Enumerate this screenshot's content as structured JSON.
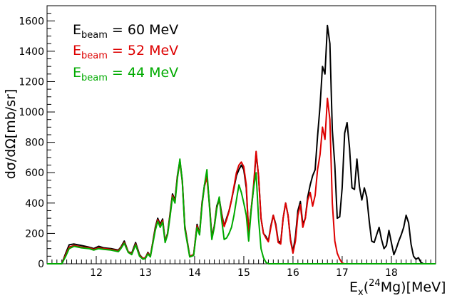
{
  "chart_data": {
    "type": "line",
    "title": "",
    "ylabel": "dσ/dΩ[mb/sr]",
    "xlabel": {
      "main": "E",
      "sub": "x",
      "open": "(",
      "sup": "24",
      "element": "Mg",
      "tail": ")[MeV]"
    },
    "xlim": [
      11.0,
      18.9
    ],
    "ylim": [
      0,
      1700
    ],
    "xticks": [
      "12",
      "13",
      "14",
      "15",
      "16",
      "17",
      "18"
    ],
    "yticks": [
      "0",
      "200",
      "400",
      "600",
      "800",
      "1000",
      "1200",
      "1400",
      "1600"
    ],
    "grid": false,
    "legend": {
      "placement": "top-left",
      "entries": [
        {
          "label_main": "E",
          "label_sub": "beam",
          "label_value": "= 60 MeV",
          "color": "#000000"
        },
        {
          "label_main": "E",
          "label_sub": "beam",
          "label_value": "= 52 MeV",
          "color": "#dd0000"
        },
        {
          "label_main": "E",
          "label_sub": "beam",
          "label_value": "= 44 MeV",
          "color": "#00aa00"
        }
      ]
    },
    "series": [
      {
        "name": "E beam = 60 MeV",
        "color": "#000000",
        "points": [
          [
            11.3,
            0
          ],
          [
            11.38,
            70
          ],
          [
            11.45,
            125
          ],
          [
            11.55,
            130
          ],
          [
            11.7,
            120
          ],
          [
            11.85,
            110
          ],
          [
            11.95,
            100
          ],
          [
            12.05,
            115
          ],
          [
            12.15,
            105
          ],
          [
            12.3,
            100
          ],
          [
            12.45,
            90
          ],
          [
            12.5,
            110
          ],
          [
            12.57,
            150
          ],
          [
            12.65,
            80
          ],
          [
            12.72,
            70
          ],
          [
            12.8,
            140
          ],
          [
            12.88,
            60
          ],
          [
            12.95,
            35
          ],
          [
            13.0,
            40
          ],
          [
            13.05,
            75
          ],
          [
            13.1,
            50
          ],
          [
            13.2,
            240
          ],
          [
            13.25,
            300
          ],
          [
            13.3,
            260
          ],
          [
            13.35,
            295
          ],
          [
            13.4,
            150
          ],
          [
            13.45,
            200
          ],
          [
            13.5,
            330
          ],
          [
            13.55,
            460
          ],
          [
            13.6,
            420
          ],
          [
            13.65,
            580
          ],
          [
            13.7,
            680
          ],
          [
            13.75,
            550
          ],
          [
            13.8,
            250
          ],
          [
            13.9,
            50
          ],
          [
            13.98,
            60
          ],
          [
            14.05,
            260
          ],
          [
            14.1,
            200
          ],
          [
            14.15,
            400
          ],
          [
            14.2,
            520
          ],
          [
            14.25,
            580
          ],
          [
            14.3,
            400
          ],
          [
            14.35,
            180
          ],
          [
            14.4,
            250
          ],
          [
            14.45,
            380
          ],
          [
            14.5,
            430
          ],
          [
            14.55,
            330
          ],
          [
            14.6,
            250
          ],
          [
            14.65,
            300
          ],
          [
            14.7,
            350
          ],
          [
            14.75,
            420
          ],
          [
            14.8,
            500
          ],
          [
            14.85,
            580
          ],
          [
            14.9,
            620
          ],
          [
            14.95,
            650
          ],
          [
            15.0,
            620
          ],
          [
            15.05,
            500
          ],
          [
            15.1,
            200
          ],
          [
            15.15,
            360
          ],
          [
            15.2,
            500
          ],
          [
            15.25,
            730
          ],
          [
            15.3,
            580
          ],
          [
            15.35,
            300
          ],
          [
            15.4,
            200
          ],
          [
            15.45,
            180
          ],
          [
            15.5,
            150
          ],
          [
            15.55,
            250
          ],
          [
            15.6,
            320
          ],
          [
            15.65,
            260
          ],
          [
            15.7,
            150
          ],
          [
            15.75,
            140
          ],
          [
            15.8,
            300
          ],
          [
            15.85,
            400
          ],
          [
            15.9,
            320
          ],
          [
            15.95,
            160
          ],
          [
            16.0,
            80
          ],
          [
            16.05,
            180
          ],
          [
            16.1,
            350
          ],
          [
            16.15,
            410
          ],
          [
            16.2,
            260
          ],
          [
            16.25,
            300
          ],
          [
            16.3,
            440
          ],
          [
            16.35,
            520
          ],
          [
            16.4,
            580
          ],
          [
            16.45,
            620
          ],
          [
            16.5,
            840
          ],
          [
            16.55,
            1040
          ],
          [
            16.6,
            1300
          ],
          [
            16.65,
            1250
          ],
          [
            16.7,
            1570
          ],
          [
            16.75,
            1450
          ],
          [
            16.8,
            880
          ],
          [
            16.85,
            650
          ],
          [
            16.9,
            300
          ],
          [
            16.95,
            310
          ],
          [
            17.0,
            500
          ],
          [
            17.05,
            860
          ],
          [
            17.1,
            930
          ],
          [
            17.15,
            760
          ],
          [
            17.2,
            500
          ],
          [
            17.25,
            490
          ],
          [
            17.3,
            690
          ],
          [
            17.35,
            510
          ],
          [
            17.4,
            420
          ],
          [
            17.45,
            500
          ],
          [
            17.5,
            440
          ],
          [
            17.55,
            280
          ],
          [
            17.6,
            150
          ],
          [
            17.65,
            140
          ],
          [
            17.7,
            190
          ],
          [
            17.75,
            240
          ],
          [
            17.8,
            160
          ],
          [
            17.85,
            100
          ],
          [
            17.9,
            120
          ],
          [
            17.95,
            220
          ],
          [
            18.0,
            140
          ],
          [
            18.05,
            60
          ],
          [
            18.1,
            100
          ],
          [
            18.15,
            150
          ],
          [
            18.2,
            190
          ],
          [
            18.25,
            240
          ],
          [
            18.3,
            320
          ],
          [
            18.35,
            270
          ],
          [
            18.4,
            130
          ],
          [
            18.45,
            50
          ],
          [
            18.5,
            30
          ],
          [
            18.55,
            40
          ],
          [
            18.6,
            10
          ],
          [
            18.65,
            0
          ]
        ]
      },
      {
        "name": "E beam = 52 MeV",
        "color": "#dd0000",
        "points": [
          [
            11.3,
            0
          ],
          [
            11.38,
            60
          ],
          [
            11.45,
            110
          ],
          [
            11.55,
            120
          ],
          [
            11.7,
            110
          ],
          [
            11.85,
            105
          ],
          [
            11.95,
            95
          ],
          [
            12.05,
            105
          ],
          [
            12.15,
            100
          ],
          [
            12.3,
            95
          ],
          [
            12.45,
            85
          ],
          [
            12.5,
            105
          ],
          [
            12.57,
            140
          ],
          [
            12.65,
            80
          ],
          [
            12.72,
            65
          ],
          [
            12.8,
            130
          ],
          [
            12.88,
            55
          ],
          [
            12.95,
            35
          ],
          [
            13.0,
            40
          ],
          [
            13.05,
            70
          ],
          [
            13.1,
            50
          ],
          [
            13.2,
            230
          ],
          [
            13.25,
            290
          ],
          [
            13.3,
            250
          ],
          [
            13.35,
            285
          ],
          [
            13.4,
            150
          ],
          [
            13.45,
            195
          ],
          [
            13.5,
            320
          ],
          [
            13.55,
            450
          ],
          [
            13.6,
            410
          ],
          [
            13.65,
            570
          ],
          [
            13.7,
            670
          ],
          [
            13.75,
            540
          ],
          [
            13.8,
            240
          ],
          [
            13.9,
            50
          ],
          [
            13.98,
            60
          ],
          [
            14.05,
            250
          ],
          [
            14.1,
            200
          ],
          [
            14.15,
            390
          ],
          [
            14.2,
            510
          ],
          [
            14.25,
            570
          ],
          [
            14.3,
            390
          ],
          [
            14.35,
            170
          ],
          [
            14.4,
            245
          ],
          [
            14.45,
            370
          ],
          [
            14.5,
            420
          ],
          [
            14.55,
            320
          ],
          [
            14.6,
            245
          ],
          [
            14.65,
            290
          ],
          [
            14.7,
            345
          ],
          [
            14.75,
            420
          ],
          [
            14.8,
            510
          ],
          [
            14.85,
            600
          ],
          [
            14.9,
            650
          ],
          [
            14.95,
            670
          ],
          [
            15.0,
            640
          ],
          [
            15.05,
            520
          ],
          [
            15.1,
            200
          ],
          [
            15.15,
            360
          ],
          [
            15.2,
            520
          ],
          [
            15.25,
            740
          ],
          [
            15.3,
            580
          ],
          [
            15.35,
            300
          ],
          [
            15.4,
            200
          ],
          [
            15.45,
            170
          ],
          [
            15.5,
            145
          ],
          [
            15.55,
            240
          ],
          [
            15.6,
            320
          ],
          [
            15.65,
            250
          ],
          [
            15.7,
            140
          ],
          [
            15.75,
            130
          ],
          [
            15.8,
            300
          ],
          [
            15.85,
            400
          ],
          [
            15.9,
            320
          ],
          [
            15.95,
            150
          ],
          [
            16.0,
            70
          ],
          [
            16.05,
            150
          ],
          [
            16.1,
            320
          ],
          [
            16.15,
            390
          ],
          [
            16.2,
            240
          ],
          [
            16.25,
            300
          ],
          [
            16.3,
            420
          ],
          [
            16.35,
            470
          ],
          [
            16.4,
            380
          ],
          [
            16.45,
            450
          ],
          [
            16.5,
            620
          ],
          [
            16.55,
            720
          ],
          [
            16.6,
            900
          ],
          [
            16.65,
            820
          ],
          [
            16.7,
            1090
          ],
          [
            16.75,
            950
          ],
          [
            16.8,
            400
          ],
          [
            16.85,
            150
          ],
          [
            16.9,
            70
          ],
          [
            16.95,
            30
          ],
          [
            17.0,
            5
          ],
          [
            17.05,
            0
          ]
        ]
      },
      {
        "name": "E beam = 44 MeV",
        "color": "#00aa00",
        "points": [
          [
            11.3,
            0
          ],
          [
            11.38,
            50
          ],
          [
            11.45,
            100
          ],
          [
            11.55,
            115
          ],
          [
            11.7,
            105
          ],
          [
            11.85,
            100
          ],
          [
            11.95,
            90
          ],
          [
            12.05,
            100
          ],
          [
            12.15,
            95
          ],
          [
            12.3,
            90
          ],
          [
            12.45,
            80
          ],
          [
            12.5,
            100
          ],
          [
            12.57,
            135
          ],
          [
            12.65,
            75
          ],
          [
            12.72,
            60
          ],
          [
            12.8,
            125
          ],
          [
            12.88,
            50
          ],
          [
            12.95,
            30
          ],
          [
            13.0,
            35
          ],
          [
            13.05,
            65
          ],
          [
            13.1,
            45
          ],
          [
            13.2,
            220
          ],
          [
            13.25,
            280
          ],
          [
            13.3,
            240
          ],
          [
            13.35,
            275
          ],
          [
            13.4,
            140
          ],
          [
            13.45,
            190
          ],
          [
            13.5,
            310
          ],
          [
            13.55,
            440
          ],
          [
            13.6,
            400
          ],
          [
            13.65,
            560
          ],
          [
            13.7,
            690
          ],
          [
            13.75,
            540
          ],
          [
            13.8,
            230
          ],
          [
            13.9,
            45
          ],
          [
            13.98,
            55
          ],
          [
            14.05,
            240
          ],
          [
            14.1,
            190
          ],
          [
            14.15,
            380
          ],
          [
            14.2,
            520
          ],
          [
            14.25,
            620
          ],
          [
            14.3,
            380
          ],
          [
            14.35,
            160
          ],
          [
            14.4,
            240
          ],
          [
            14.45,
            360
          ],
          [
            14.5,
            440
          ],
          [
            14.55,
            290
          ],
          [
            14.6,
            160
          ],
          [
            14.65,
            170
          ],
          [
            14.7,
            200
          ],
          [
            14.75,
            240
          ],
          [
            14.8,
            320
          ],
          [
            14.85,
            420
          ],
          [
            14.9,
            520
          ],
          [
            14.95,
            470
          ],
          [
            15.0,
            400
          ],
          [
            15.05,
            320
          ],
          [
            15.1,
            150
          ],
          [
            15.15,
            350
          ],
          [
            15.2,
            500
          ],
          [
            15.25,
            600
          ],
          [
            15.3,
            300
          ],
          [
            15.35,
            100
          ],
          [
            15.4,
            40
          ],
          [
            15.45,
            10
          ],
          [
            15.5,
            0
          ]
        ]
      }
    ]
  }
}
